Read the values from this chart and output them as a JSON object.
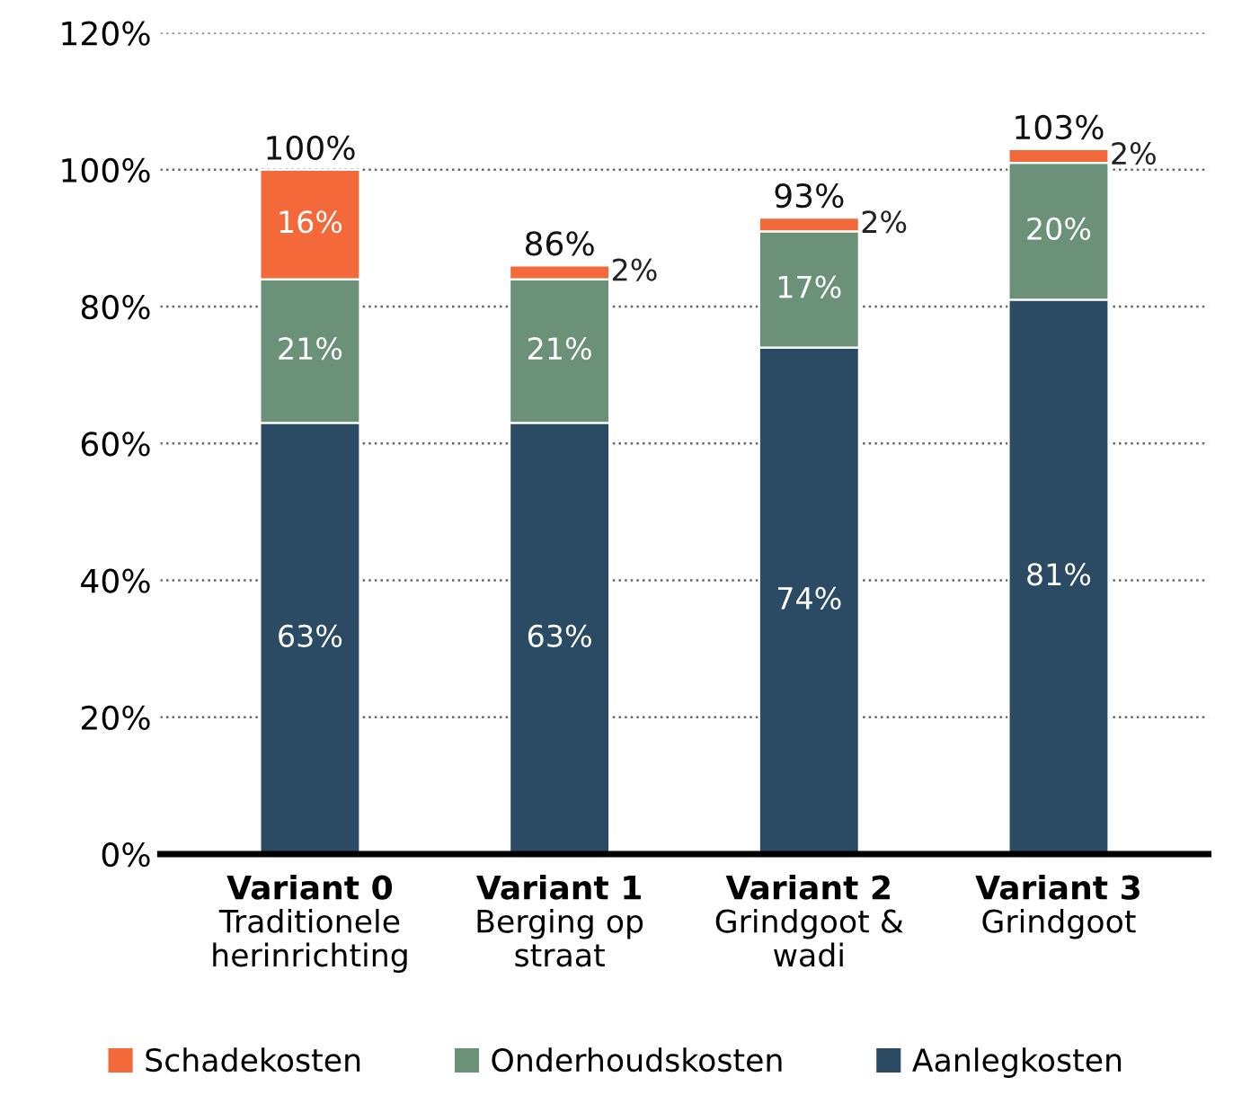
{
  "chart_data": {
    "type": "bar",
    "stacked": true,
    "categories": [
      "Variant 0\nTraditionele\nherinrichting",
      "Variant 1\nBerging op\nstraat",
      "Variant 2\nGrindgoot &\nwadi",
      "Variant 3\nGrindgoot"
    ],
    "series": [
      {
        "name": "Aanlegkosten",
        "color": "#2b4a63",
        "values": [
          63,
          63,
          74,
          81
        ],
        "value_labels": [
          "63%",
          "63%",
          "74%",
          "81%"
        ]
      },
      {
        "name": "Onderhoudskosten",
        "color": "#6b9279",
        "values": [
          21,
          21,
          17,
          20
        ],
        "value_labels": [
          "21%",
          "21%",
          "17%",
          "20%"
        ]
      },
      {
        "name": "Schadekosten",
        "color": "#f3693a",
        "values": [
          16,
          2,
          2,
          2
        ],
        "value_labels": [
          "16%",
          "2%",
          "2%",
          "2%"
        ]
      }
    ],
    "totals": [
      "100%",
      "86%",
      "93%",
      "103%"
    ],
    "ylim": [
      0,
      120
    ],
    "yticks": [
      {
        "value": 0,
        "label": "0%"
      },
      {
        "value": 20,
        "label": "20%"
      },
      {
        "value": 40,
        "label": "40%"
      },
      {
        "value": 60,
        "label": "60%"
      },
      {
        "value": 80,
        "label": "80%"
      },
      {
        "value": 100,
        "label": "100%"
      },
      {
        "value": 120,
        "label": "120%"
      }
    ],
    "grid": "y",
    "legend": "bottom"
  }
}
